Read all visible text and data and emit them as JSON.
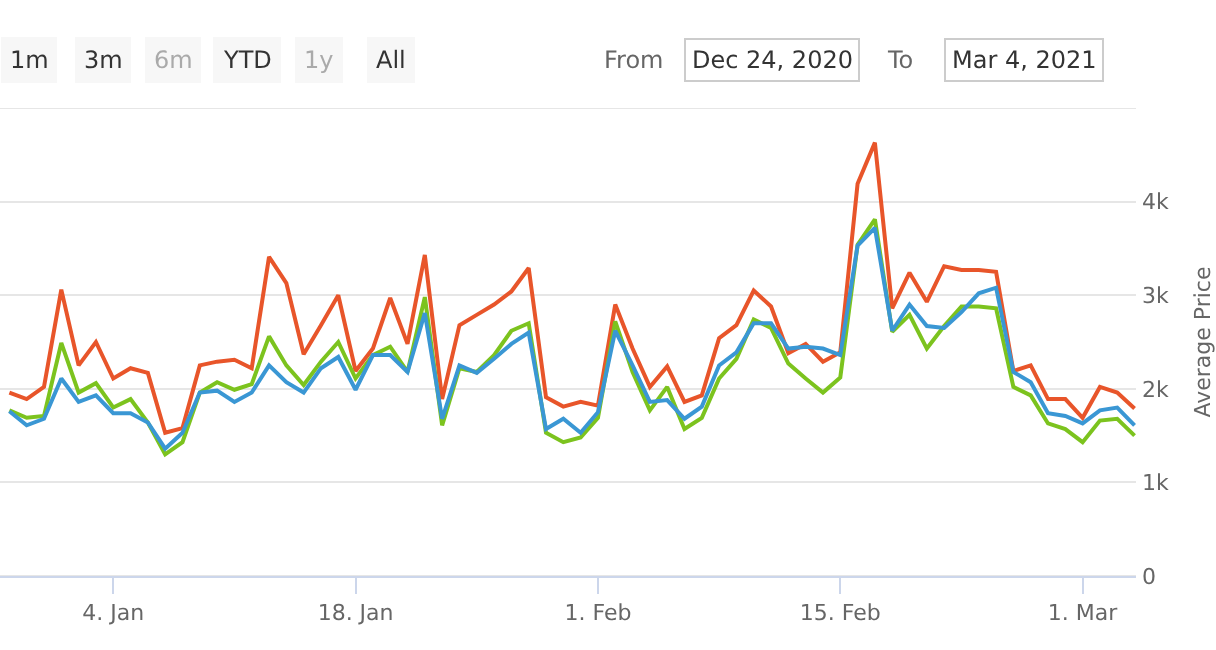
{
  "chart_data": {
    "type": "line",
    "ylabel": "Average Price",
    "annotations": [
      "1m",
      "3m",
      "6m",
      "YTD",
      "1y",
      "All",
      "From",
      "Dec 24, 2020",
      "To",
      "Mar 4, 2021"
    ],
    "x": [
      "2020-12-29",
      "2020-12-30",
      "2020-12-31",
      "2021-01-01",
      "2021-01-02",
      "2021-01-03",
      "2021-01-04",
      "2021-01-05",
      "2021-01-06",
      "2021-01-07",
      "2021-01-08",
      "2021-01-09",
      "2021-01-10",
      "2021-01-11",
      "2021-01-12",
      "2021-01-13",
      "2021-01-14",
      "2021-01-15",
      "2021-01-16",
      "2021-01-17",
      "2021-01-18",
      "2021-01-19",
      "2021-01-20",
      "2021-01-21",
      "2021-01-22",
      "2021-01-23",
      "2021-01-24",
      "2021-01-25",
      "2021-01-26",
      "2021-01-27",
      "2021-01-28",
      "2021-01-29",
      "2021-01-30",
      "2021-01-31",
      "2021-02-01",
      "2021-02-02",
      "2021-02-03",
      "2021-02-04",
      "2021-02-05",
      "2021-02-06",
      "2021-02-07",
      "2021-02-08",
      "2021-02-09",
      "2021-02-10",
      "2021-02-11",
      "2021-02-12",
      "2021-02-13",
      "2021-02-14",
      "2021-02-15",
      "2021-02-16",
      "2021-02-17",
      "2021-02-18",
      "2021-02-19",
      "2021-02-20",
      "2021-02-21",
      "2021-02-22",
      "2021-02-23",
      "2021-02-24",
      "2021-02-25",
      "2021-02-26",
      "2021-02-27",
      "2021-02-28",
      "2021-03-01",
      "2021-03-02",
      "2021-03-03",
      "2021-03-04"
    ],
    "series": [
      {
        "color": "#e8552a",
        "values": [
          1960,
          1890,
          2020,
          3060,
          2250,
          2500,
          2110,
          2220,
          2170,
          1530,
          1580,
          2250,
          2290,
          2310,
          2220,
          3410,
          3130,
          2370,
          2680,
          3000,
          2190,
          2430,
          2970,
          2480,
          3430,
          1890,
          2680,
          2790,
          2900,
          3040,
          3290,
          1910,
          1810,
          1860,
          1820,
          2900,
          2430,
          2020,
          2240,
          1860,
          1930,
          2540,
          2680,
          3050,
          2880,
          2380,
          2480,
          2290,
          2390,
          4190,
          4630,
          2860,
          3240,
          2930,
          3310,
          3270,
          3270,
          3250,
          2190,
          2250,
          1890,
          1890,
          1690,
          2020,
          1960,
          1790
        ]
      },
      {
        "color": "#7cc31e",
        "values": [
          1770,
          1690,
          1710,
          2490,
          1960,
          2060,
          1800,
          1890,
          1640,
          1300,
          1430,
          1960,
          2070,
          1990,
          2050,
          2560,
          2250,
          2040,
          2290,
          2500,
          2110,
          2360,
          2450,
          2180,
          2980,
          1610,
          2220,
          2180,
          2360,
          2620,
          2700,
          1530,
          1430,
          1480,
          1690,
          2720,
          2180,
          1770,
          2020,
          1570,
          1690,
          2110,
          2320,
          2740,
          2650,
          2270,
          2110,
          1960,
          2120,
          3540,
          3810,
          2610,
          2790,
          2430,
          2670,
          2880,
          2880,
          2860,
          2020,
          1930,
          1630,
          1570,
          1430,
          1660,
          1680,
          1500
        ]
      },
      {
        "color": "#3a97d4",
        "values": [
          1760,
          1610,
          1680,
          2110,
          1860,
          1930,
          1740,
          1740,
          1640,
          1360,
          1530,
          1960,
          1980,
          1860,
          1960,
          2250,
          2070,
          1960,
          2220,
          2340,
          1990,
          2360,
          2360,
          2180,
          2810,
          1680,
          2250,
          2170,
          2320,
          2480,
          2600,
          1570,
          1680,
          1530,
          1750,
          2620,
          2250,
          1860,
          1880,
          1680,
          1810,
          2250,
          2390,
          2700,
          2700,
          2430,
          2450,
          2430,
          2360,
          3530,
          3720,
          2620,
          2900,
          2670,
          2650,
          2820,
          3020,
          3080,
          2180,
          2070,
          1740,
          1710,
          1630,
          1770,
          1800,
          1610
        ]
      }
    ],
    "xlim": [
      "2020-12-28T11:00",
      "2021-03-04T02:00"
    ],
    "xticks": [
      {
        "value": "2021-01-04",
        "label": "4. Jan"
      },
      {
        "value": "2021-01-18",
        "label": "18. Jan"
      },
      {
        "value": "2021-02-01",
        "label": "1. Feb"
      },
      {
        "value": "2021-02-15",
        "label": "15. Feb"
      },
      {
        "value": "2021-03-01",
        "label": "1. Mar"
      }
    ],
    "ylim": [
      0,
      5000
    ],
    "yticks": [
      {
        "value": 0,
        "label": "0"
      },
      {
        "value": 1000,
        "label": "1k"
      },
      {
        "value": 2000,
        "label": "2k"
      },
      {
        "value": 3000,
        "label": "3k"
      },
      {
        "value": 4000,
        "label": "4k"
      },
      {
        "value": 5000,
        "label": null
      }
    ],
    "grid": "y",
    "marker": "none",
    "line_style": "solid"
  }
}
